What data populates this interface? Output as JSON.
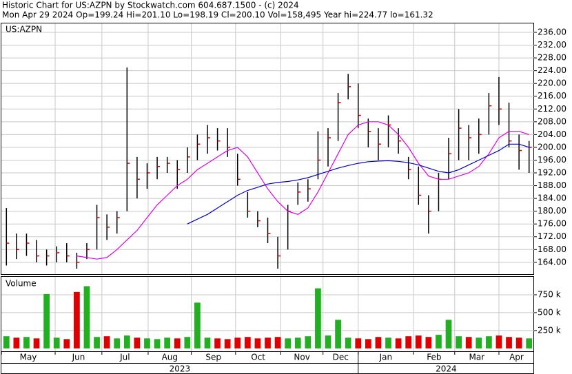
{
  "chart_data": {
    "type": "ohlc",
    "title": "Historic Chart for US:AZPN by Stockwatch.com 604.687.1500 - (c) 2024",
    "subtitle": "Mon Apr 29 2024   Op=199.24  Hi=201.10  Lo=198.19  Cl=200.10  Vol=158,495  Year hi=224.77  lo=161.32",
    "symbol": "US:AZPN",
    "volume_label": "Volume",
    "high": [
      181,
      173,
      173,
      171,
      168,
      169,
      170,
      167,
      170,
      182,
      179,
      180,
      225,
      197,
      195,
      197,
      197,
      196,
      200,
      204,
      207,
      206,
      206,
      198,
      186,
      180,
      178,
      172,
      182,
      189,
      190,
      205,
      206,
      217,
      223,
      220,
      209,
      206,
      210,
      206,
      197,
      194,
      185,
      192,
      203,
      212,
      207,
      209,
      217,
      222,
      214,
      204,
      202
    ],
    "low": [
      163,
      165,
      166,
      164,
      163,
      164,
      164,
      162,
      165,
      168,
      171,
      173,
      180,
      184,
      187,
      190,
      192,
      187,
      192,
      196,
      198,
      199,
      197,
      188,
      178,
      175,
      170,
      162,
      168,
      182,
      183,
      190,
      194,
      202,
      215,
      206,
      200,
      196,
      200,
      198,
      190,
      182,
      173,
      180,
      190,
      196,
      196,
      198,
      204,
      207,
      200,
      193,
      192
    ],
    "close": [
      170,
      168,
      170,
      166,
      166,
      167,
      166,
      164,
      168,
      178,
      175,
      178,
      195,
      190,
      192,
      194,
      195,
      193,
      197,
      201,
      203,
      202,
      200,
      190,
      180,
      177,
      173,
      166,
      180,
      186,
      187,
      196,
      203,
      214,
      219,
      210,
      205,
      201,
      207,
      202,
      193,
      185,
      180,
      190,
      198,
      206,
      203,
      204,
      213,
      212,
      202,
      199,
      200
    ],
    "volume": [
      170,
      150,
      160,
      140,
      760,
      150,
      130,
      790,
      870,
      160,
      170,
      140,
      180,
      150,
      140,
      130,
      150,
      140,
      160,
      640,
      150,
      140,
      130,
      150,
      160,
      140,
      150,
      160,
      140,
      150,
      170,
      840,
      180,
      400,
      150,
      140,
      130,
      160,
      150,
      140,
      170,
      180,
      160,
      190,
      400,
      170,
      160,
      150,
      170,
      180,
      160,
      150,
      140
    ],
    "series": [
      {
        "name": "MA short",
        "color": "#e000e0",
        "values": [
          null,
          null,
          null,
          null,
          null,
          null,
          null,
          166,
          165.5,
          165,
          165.5,
          168,
          171,
          174,
          178,
          182,
          185,
          188,
          190,
          193,
          195,
          197,
          199,
          200,
          197,
          192,
          187,
          183,
          180,
          179,
          181,
          186,
          192,
          198,
          204,
          207,
          208,
          208,
          207,
          204,
          200,
          195,
          191,
          190,
          190,
          191,
          192,
          194,
          198,
          203,
          205,
          205,
          204
        ]
      },
      {
        "name": "MA long",
        "color": "#0000c8",
        "values": [
          null,
          null,
          null,
          null,
          null,
          null,
          null,
          null,
          null,
          null,
          null,
          null,
          null,
          null,
          null,
          null,
          null,
          null,
          176,
          177.5,
          179,
          181,
          183,
          185,
          186.5,
          187.5,
          188.5,
          189,
          189.3,
          189.8,
          190.5,
          191.5,
          192.5,
          193.5,
          194.3,
          195,
          195.5,
          195.7,
          195.8,
          195.6,
          195.2,
          194.5,
          193.5,
          192.5,
          192,
          193,
          194.5,
          196,
          197.5,
          199,
          201,
          201,
          200
        ]
      }
    ],
    "up_color": "#22b022",
    "down_color": "#e00000",
    "bar_color": "#000000",
    "close_color": "#d00000",
    "ylim": [
      160.3,
      238.8
    ],
    "yticks": [
      {
        "value": 164,
        "label": "164.00"
      },
      {
        "value": 168,
        "label": "168.00"
      },
      {
        "value": 172,
        "label": "172.00"
      },
      {
        "value": 176,
        "label": "176.00"
      },
      {
        "value": 180,
        "label": "180.00"
      },
      {
        "value": 184,
        "label": "184.00"
      },
      {
        "value": 188,
        "label": "188.00"
      },
      {
        "value": 192,
        "label": "192.00"
      },
      {
        "value": 196,
        "label": "196.00"
      },
      {
        "value": 200,
        "label": "200.00"
      },
      {
        "value": 204,
        "label": "204.00"
      },
      {
        "value": 208,
        "label": "208.00"
      },
      {
        "value": 212,
        "label": "212.00"
      },
      {
        "value": 216,
        "label": "216.00"
      },
      {
        "value": 220,
        "label": "220.00"
      },
      {
        "value": 224,
        "label": "224.00"
      },
      {
        "value": 228,
        "label": "228.00"
      },
      {
        "value": 232,
        "label": "232.00"
      },
      {
        "value": 236,
        "label": "236.00"
      }
    ],
    "volume_lim": [
      -40,
      1000
    ],
    "volume_ticks": [
      {
        "value": 250,
        "label": "250 k"
      },
      {
        "value": 500,
        "label": "500 k"
      },
      {
        "value": 750,
        "label": "750 k"
      }
    ],
    "xticks": [
      {
        "value": 0,
        "label": "May"
      },
      {
        "value": 5.35,
        "label": "Jun"
      },
      {
        "value": 10,
        "label": "Jul"
      },
      {
        "value": 14.6,
        "label": "Aug"
      },
      {
        "value": 18.9,
        "label": "Sep"
      },
      {
        "value": 23.3,
        "label": "Oct"
      },
      {
        "value": 27.8,
        "label": "Nov"
      },
      {
        "value": 32,
        "label": "Dec"
      },
      {
        "value": 35.5,
        "label": "Jan"
      },
      {
        "value": 41,
        "label": "Feb"
      },
      {
        "value": 45.1,
        "label": "Mar"
      },
      {
        "value": 49.5,
        "label": "Apr"
      }
    ],
    "years": [
      {
        "value": 0,
        "label": "2023"
      },
      {
        "value": 35.5,
        "label": "2024"
      }
    ],
    "grid": true
  }
}
